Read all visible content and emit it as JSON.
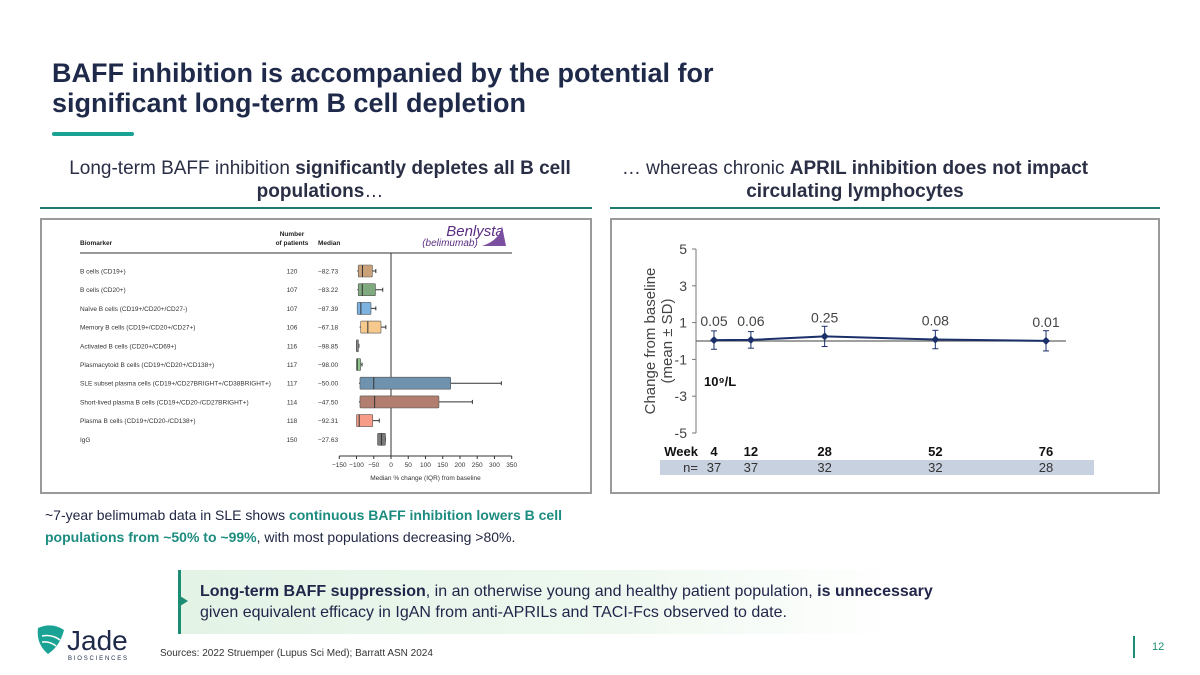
{
  "title": {
    "line1": "BAFF inhibition is accompanied by the potential for",
    "line2": "significant long-term B cell depletion"
  },
  "left": {
    "heading_pre": "Long-term BAFF inhibition ",
    "heading_bold": "significantly depletes all B cell populations",
    "heading_post": "…",
    "caption_pre": "~7-year belimumab data in SLE shows ",
    "caption_hl": "continuous BAFF inhibition lowers B cell populations from ~50% to ~99%",
    "caption_post": ", with most populations decreasing >80%."
  },
  "right": {
    "heading_pre": "… whereas chronic ",
    "heading_bold": "APRIL inhibition does not impact circulating lymphocytes"
  },
  "callout": {
    "bold1": "Long-term BAFF suppression",
    "mid": ", in an otherwise young and healthy patient population, ",
    "bold2": "is unnecessary",
    "rest": " given equivalent efficacy in IgAN from anti-APRILs and TACI-Fcs observed to date."
  },
  "sources": "Sources: 2022 Struemper (Lupus Sci Med); Barratt ASN 2024",
  "page_number": "12",
  "logo": {
    "name": "Jade",
    "tagline": "BIOSCIENCES"
  },
  "colors": {
    "teal": "#1aa394",
    "navy": "#1f2a4a",
    "marker": "#1b2f6b"
  },
  "chart_data": [
    {
      "type": "box",
      "brand": {
        "name": "Benlysta",
        "generic": "(belimumab)"
      },
      "headers": {
        "biomarker": "Biomarker",
        "patients_line1": "Number",
        "patients_line2": "of patients",
        "median": "Median"
      },
      "xlabel": "Median % change (IQR) from baseline",
      "xlim": [
        -150,
        350
      ],
      "xticks": [
        "−150",
        "−100",
        "−50",
        "0",
        "50",
        "100",
        "150",
        "200",
        "250",
        "300",
        "350"
      ],
      "rows": [
        {
          "label": "B cells (CD19+)",
          "n": "120",
          "median": -82.73,
          "q1": -95,
          "q3": -54,
          "lo": -98,
          "hi": -44,
          "color": "#c9a27a"
        },
        {
          "label": "B cells (CD20+)",
          "n": "107",
          "median": -83.22,
          "q1": -95,
          "q3": -45,
          "lo": -98,
          "hi": -24,
          "color": "#7faa80"
        },
        {
          "label": "Naïve B cells (CD19+/CD20+/CD27-)",
          "n": "107",
          "median": -87.39,
          "q1": -98,
          "q3": -58,
          "lo": -99,
          "hi": -44,
          "color": "#7db3e0"
        },
        {
          "label": "Memory B cells (CD19+/CD20+/CD27+)",
          "n": "106",
          "median": -67.18,
          "q1": -88,
          "q3": -29,
          "lo": -91,
          "hi": -15,
          "color": "#f7c98c"
        },
        {
          "label": "Activated B cells (CD20+/CD69+)",
          "n": "116",
          "median": -98.85,
          "q1": -100,
          "q3": -96,
          "lo": -100,
          "hi": -93,
          "color": "#c0c0c0"
        },
        {
          "label": "Plasmacytoid B cells (CD19+/CD20+/CD138+)",
          "n": "117",
          "median": -98.0,
          "q1": -100,
          "q3": -88,
          "lo": -100,
          "hi": -84,
          "color": "#8cc48c"
        },
        {
          "label": "SLE subset plasma cells (CD19+/CD27BRIGHT+/CD38BRIGHT+)",
          "n": "117",
          "median": -50.0,
          "q1": -90,
          "q3": 173,
          "lo": -93,
          "hi": 320,
          "color": "#6f93ae"
        },
        {
          "label": "Short-lived plasma B cells (CD19+/CD20-/CD27BRIGHT+)",
          "n": "114",
          "median": -47.5,
          "q1": -90,
          "q3": 139,
          "lo": -93,
          "hi": 236,
          "color": "#b27e70"
        },
        {
          "label": "Plasma B cells (CD19+/CD20-/CD138+)",
          "n": "118",
          "median": -92.31,
          "q1": -100,
          "q3": -53,
          "lo": -100,
          "hi": -34,
          "color": "#f79c86"
        },
        {
          "label": "IgG",
          "n": "150",
          "median": -27.63,
          "q1": -39,
          "q3": -16,
          "lo": -39,
          "hi": -16,
          "color": "#7a7a7a"
        }
      ]
    },
    {
      "type": "line",
      "ylabel_line1": "Change from baseline",
      "ylabel_line2": "(mean ± SD)",
      "unit": "10⁹/L",
      "ylim": [
        -5,
        5
      ],
      "yticks": [
        5,
        3,
        1,
        -1,
        -3,
        -5
      ],
      "xlabel": "Week",
      "n_label": "n=",
      "points": [
        {
          "week": 4,
          "value": 0.05,
          "sd": 0.5,
          "n": "37"
        },
        {
          "week": 12,
          "value": 0.06,
          "sd": 0.45,
          "n": "37"
        },
        {
          "week": 28,
          "value": 0.25,
          "sd": 0.55,
          "n": "32"
        },
        {
          "week": 52,
          "value": 0.08,
          "sd": 0.5,
          "n": "32"
        },
        {
          "week": 76,
          "value": 0.01,
          "sd": 0.55,
          "n": "28"
        }
      ]
    }
  ]
}
